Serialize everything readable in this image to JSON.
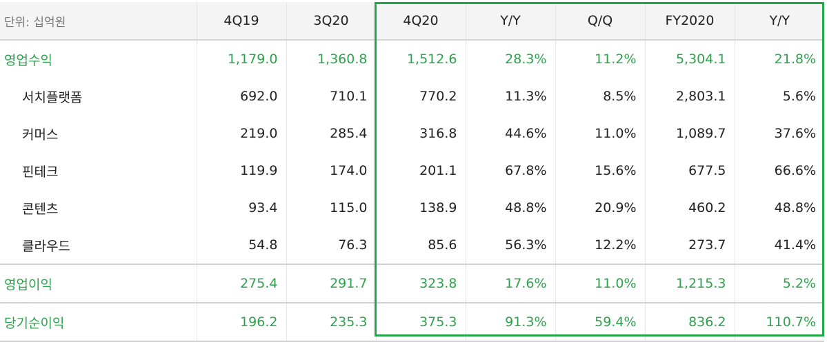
{
  "table": {
    "header": [
      "단위: 십억원",
      "4Q19",
      "3Q20",
      "4Q20",
      "Y/Y",
      "Q/Q",
      "FY2020",
      "Y/Y"
    ],
    "rows": [
      [
        "영업수익",
        "1,179.0",
        "1,360.8",
        "1,512.6",
        "28.3%",
        "11.2%",
        "5,304.1",
        "21.8%"
      ],
      [
        "서치플랫폼",
        "692.0",
        "710.1",
        "770.2",
        "11.3%",
        "8.5%",
        "2,803.1",
        "5.6%"
      ],
      [
        "커머스",
        "219.0",
        "285.4",
        "316.8",
        "44.6%",
        "11.0%",
        "1,089.7",
        "37.6%"
      ],
      [
        "핀테크",
        "119.9",
        "174.0",
        "201.1",
        "67.8%",
        "15.6%",
        "677.5",
        "66.6%"
      ],
      [
        "콘텐츠",
        "93.4",
        "115.0",
        "138.9",
        "48.8%",
        "20.9%",
        "460.2",
        "48.8%"
      ],
      [
        "클라우드",
        "54.8",
        "76.3",
        "85.6",
        "56.3%",
        "12.2%",
        "273.7",
        "41.4%"
      ],
      [
        "영업이익",
        "275.4",
        "291.7",
        "323.8",
        "17.6%",
        "11.0%",
        "1,215.3",
        "5.2%"
      ],
      [
        "당기순이익",
        "196.2",
        "235.3",
        "375.3",
        "91.3%",
        "59.4%",
        "836.2",
        "110.7%"
      ]
    ]
  }
}
